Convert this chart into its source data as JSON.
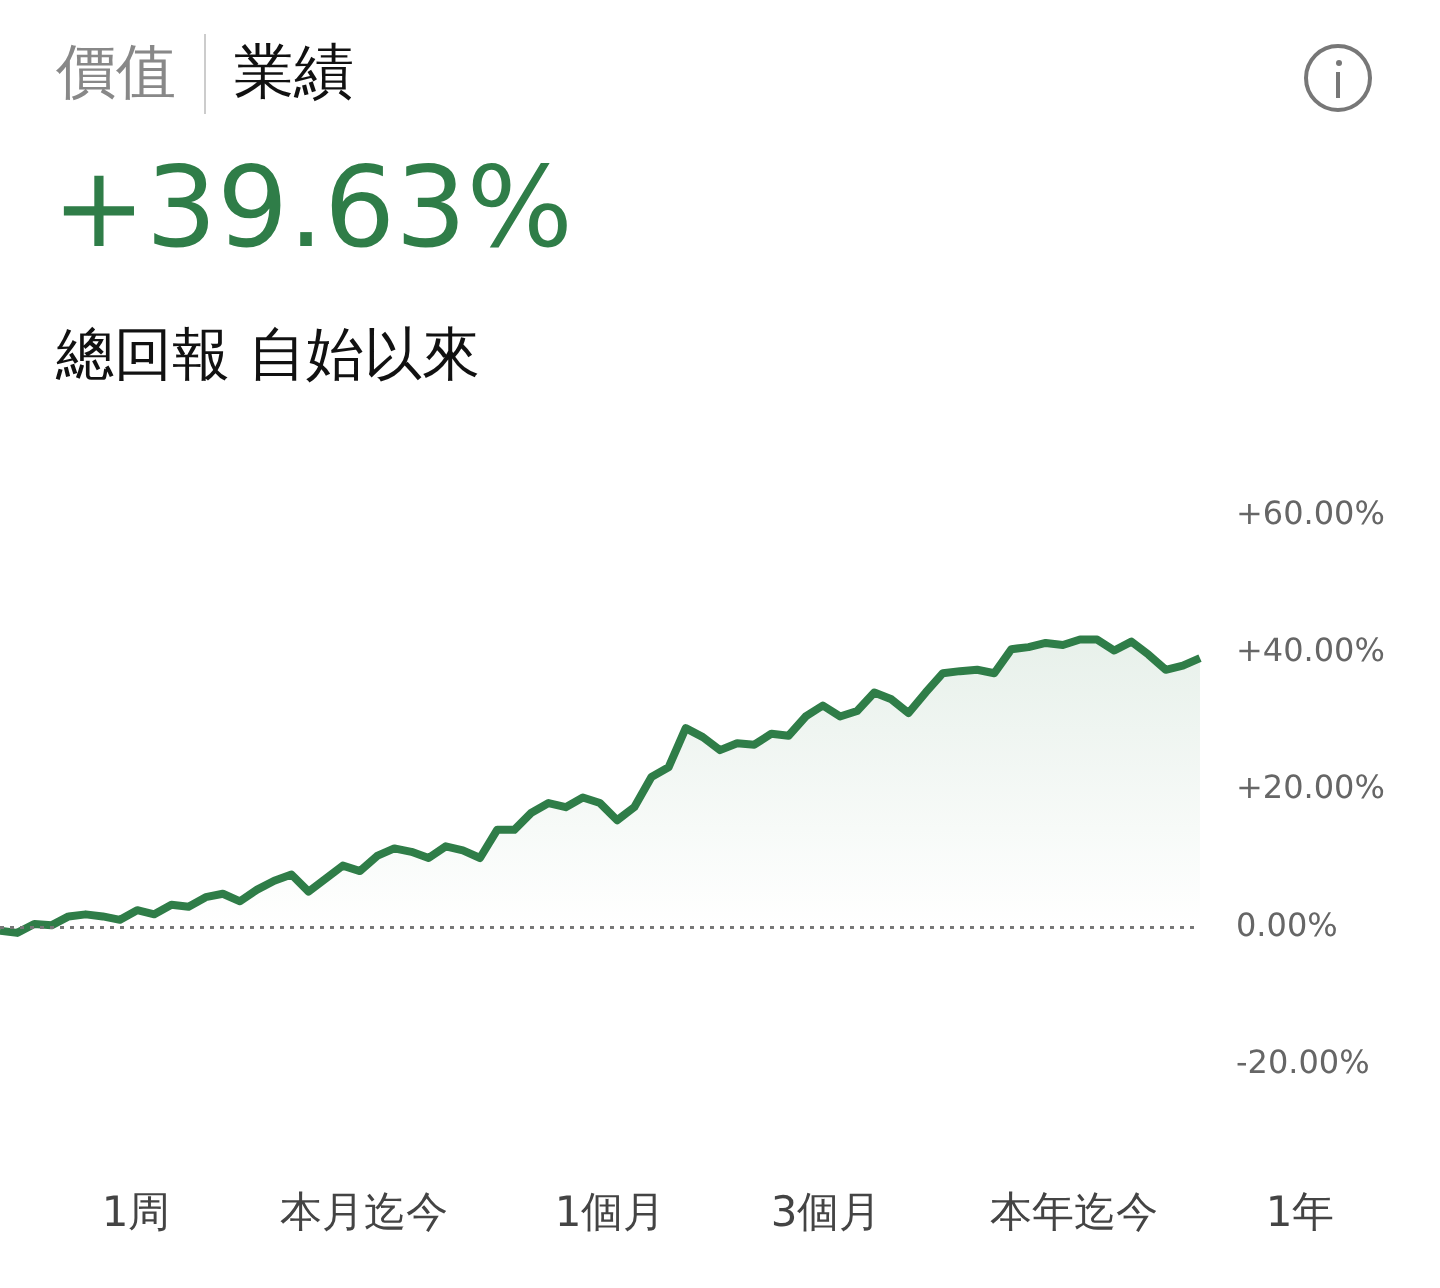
{
  "chart_data": {
    "type": "area",
    "title": "+39.63%",
    "subtitle": "總回報 自始以來",
    "annotations": [
      "價值",
      "業績",
      "1周",
      "本月迄今",
      "1個月",
      "3個月",
      "本年迄今",
      "1年"
    ],
    "categories": [
      null,
      null,
      null,
      null,
      null,
      null,
      null,
      null,
      null,
      null,
      null,
      null,
      null,
      null,
      null,
      null,
      null,
      null,
      null,
      null,
      null,
      null,
      null,
      null,
      null,
      null,
      null,
      null,
      null,
      null,
      null,
      null,
      null,
      null,
      null,
      null,
      null,
      null,
      null,
      null,
      null,
      null,
      null,
      null,
      null,
      null,
      null,
      null,
      null,
      null,
      null,
      null,
      null,
      null,
      null,
      null,
      null,
      null,
      null,
      null,
      null,
      null,
      null,
      null,
      null,
      null,
      null,
      null,
      null,
      null,
      null
    ],
    "series": [
      {
        "color": "#2f7d48",
        "values": [
          -0.5,
          -0.8,
          0.5,
          0.3,
          1.6,
          1.9,
          1.6,
          1.1,
          2.5,
          1.9,
          3.3,
          3.0,
          4.4,
          4.9,
          3.8,
          5.5,
          6.8,
          7.7,
          5.2,
          7.1,
          9.0,
          8.2,
          10.4,
          11.5,
          11.0,
          10.1,
          11.8,
          11.2,
          10.1,
          14.2,
          14.2,
          16.7,
          18.1,
          17.5,
          18.9,
          18.1,
          15.6,
          17.5,
          21.9,
          23.3,
          29.0,
          27.7,
          25.8,
          26.8,
          26.6,
          28.2,
          27.9,
          30.7,
          32.3,
          30.7,
          31.5,
          34.2,
          33.2,
          31.2,
          34.2,
          37.0,
          37.3,
          37.5,
          37.0,
          40.5,
          40.8,
          41.4,
          41.1,
          41.9,
          41.9,
          40.3,
          41.6,
          39.7,
          37.5,
          38.1,
          39.2
        ]
      }
    ],
    "ylim": [
      -20,
      60
    ],
    "yticks": [
      {
        "value": -20,
        "label": "-20.00%"
      },
      {
        "value": 0,
        "label": "0.00%"
      },
      {
        "value": 20,
        "label": "+20.00%"
      },
      {
        "value": 40,
        "label": "+40.00%"
      },
      {
        "value": 60,
        "label": "+60.00%"
      }
    ],
    "ref_lines": [
      {
        "axis": "y",
        "value": 0,
        "line_style": "dotted",
        "color": "#777777"
      }
    ],
    "grid": false,
    "legend": false,
    "marker": "none",
    "line_style": "solid",
    "tick_labels": "y"
  }
}
